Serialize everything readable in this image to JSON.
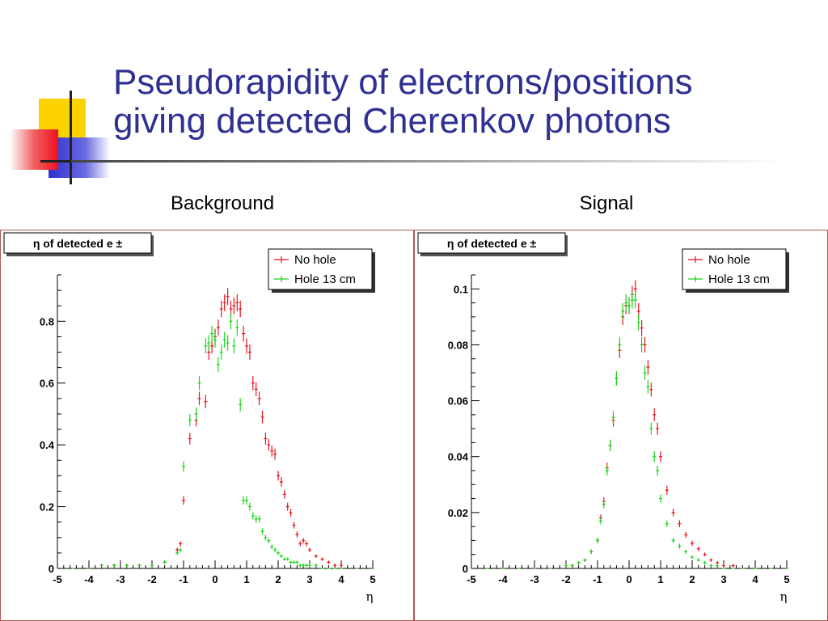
{
  "slide": {
    "title_line1": "Pseudorapidity of electrons/positions",
    "title_line2": "giving detected Cherenkov photons",
    "title_color": "#2e3192"
  },
  "panels": {
    "left_label": "Background",
    "right_label": "Signal"
  },
  "chart_data": [
    {
      "type": "scatter",
      "title": "η of detected e ±",
      "xlabel": "η",
      "ylabel": "",
      "xlim": [
        -5,
        5
      ],
      "ylim": [
        0,
        0.95
      ],
      "grid": false,
      "legend": "top-right",
      "x_ticks": [
        -5,
        -4,
        -3,
        -2,
        -1,
        0,
        1,
        2,
        3,
        4,
        5
      ],
      "y_ticks": [
        0,
        0.2,
        0.4,
        0.6,
        0.8
      ],
      "y_tick_labels": [
        "0",
        "0.2",
        "0.4",
        "0.6",
        "0.8"
      ],
      "x": [
        -4.5,
        -4.0,
        -3.6,
        -3.2,
        -2.8,
        -2.4,
        -2.0,
        -1.6,
        -1.2,
        -1.1,
        -1.0,
        -0.8,
        -0.6,
        -0.5,
        -0.3,
        -0.2,
        -0.1,
        0.0,
        0.1,
        0.2,
        0.3,
        0.4,
        0.5,
        0.6,
        0.7,
        0.8,
        0.9,
        1.0,
        1.1,
        1.2,
        1.3,
        1.4,
        1.5,
        1.6,
        1.7,
        1.8,
        1.9,
        2.0,
        2.1,
        2.2,
        2.3,
        2.4,
        2.5,
        2.6,
        2.7,
        2.8,
        2.9,
        3.0,
        3.2,
        3.4,
        3.6,
        3.8,
        4.0,
        4.5,
        5.0
      ],
      "series": [
        {
          "name": "No hole",
          "color": "#e8141e",
          "values": [
            0.0,
            0.0,
            0.01,
            0.01,
            0.01,
            0.01,
            0.01,
            0.02,
            0.06,
            0.08,
            0.22,
            0.42,
            0.48,
            0.55,
            0.54,
            0.7,
            0.72,
            0.75,
            0.78,
            0.84,
            0.86,
            0.88,
            0.84,
            0.85,
            0.86,
            0.84,
            0.76,
            0.72,
            0.7,
            0.6,
            0.58,
            0.55,
            0.49,
            0.42,
            0.4,
            0.38,
            0.37,
            0.3,
            0.28,
            0.24,
            0.2,
            0.18,
            0.14,
            0.11,
            0.08,
            0.09,
            0.08,
            0.06,
            0.04,
            0.03,
            0.02,
            0.01,
            0.01,
            0.0,
            0.0
          ]
        },
        {
          "name": "Hole 13 cm",
          "color": "#1ed41e",
          "values": [
            0.0,
            0.0,
            0.01,
            0.01,
            0.01,
            0.01,
            0.01,
            0.02,
            0.05,
            0.06,
            0.33,
            0.48,
            0.5,
            0.6,
            0.72,
            0.73,
            0.76,
            0.74,
            0.66,
            0.7,
            0.74,
            0.73,
            0.8,
            0.72,
            0.78,
            0.53,
            0.22,
            0.22,
            0.2,
            0.17,
            0.16,
            0.16,
            0.12,
            0.1,
            0.09,
            0.07,
            0.06,
            0.05,
            0.04,
            0.03,
            0.03,
            0.02,
            0.02,
            0.02,
            0.01,
            0.01,
            0.01,
            0.01,
            0.01,
            0.0,
            0.0,
            0.0,
            0.0,
            0.0,
            0.0
          ]
        }
      ]
    },
    {
      "type": "scatter",
      "title": "η of detected e ±",
      "xlabel": "η",
      "ylabel": "",
      "xlim": [
        -5,
        5
      ],
      "ylim": [
        0,
        0.105
      ],
      "grid": false,
      "legend": "top-right",
      "x_ticks": [
        -5,
        -4,
        -3,
        -2,
        -1,
        0,
        1,
        2,
        3,
        4,
        5
      ],
      "y_ticks": [
        0,
        0.02,
        0.04,
        0.06,
        0.08,
        0.1
      ],
      "y_tick_labels": [
        "0",
        "0.02",
        "0.04",
        "0.06",
        "0.08",
        "0.1"
      ],
      "x": [
        -4.5,
        -4.0,
        -3.5,
        -3.0,
        -2.5,
        -2.0,
        -1.8,
        -1.6,
        -1.4,
        -1.2,
        -1.0,
        -0.9,
        -0.8,
        -0.7,
        -0.6,
        -0.5,
        -0.4,
        -0.3,
        -0.2,
        -0.1,
        0.0,
        0.1,
        0.2,
        0.3,
        0.4,
        0.5,
        0.6,
        0.7,
        0.8,
        0.9,
        1.0,
        1.2,
        1.4,
        1.6,
        1.8,
        2.0,
        2.2,
        2.4,
        2.6,
        2.8,
        3.0,
        3.3,
        3.6,
        4.0,
        4.5,
        5.0
      ],
      "series": [
        {
          "name": "No hole",
          "color": "#e8141e",
          "values": [
            0.0,
            0.0,
            0.0,
            0.0,
            0.0,
            0.001,
            0.001,
            0.002,
            0.003,
            0.006,
            0.01,
            0.018,
            0.024,
            0.036,
            0.044,
            0.053,
            0.068,
            0.078,
            0.09,
            0.094,
            0.094,
            0.098,
            0.1,
            0.092,
            0.086,
            0.08,
            0.072,
            0.064,
            0.055,
            0.05,
            0.04,
            0.028,
            0.02,
            0.016,
            0.012,
            0.009,
            0.007,
            0.005,
            0.003,
            0.002,
            0.001,
            0.001,
            0.0,
            0.0,
            0.0,
            0.0
          ]
        },
        {
          "name": "Hole 13 cm",
          "color": "#1ed41e",
          "values": [
            0.0,
            0.0,
            0.0,
            0.0,
            0.0,
            0.001,
            0.001,
            0.002,
            0.003,
            0.006,
            0.01,
            0.017,
            0.023,
            0.035,
            0.044,
            0.054,
            0.068,
            0.08,
            0.092,
            0.095,
            0.094,
            0.096,
            0.096,
            0.088,
            0.08,
            0.07,
            0.065,
            0.05,
            0.04,
            0.035,
            0.025,
            0.016,
            0.01,
            0.008,
            0.006,
            0.004,
            0.003,
            0.002,
            0.001,
            0.001,
            0.0,
            0.0,
            0.0,
            0.0,
            0.0,
            0.0
          ]
        }
      ]
    }
  ]
}
